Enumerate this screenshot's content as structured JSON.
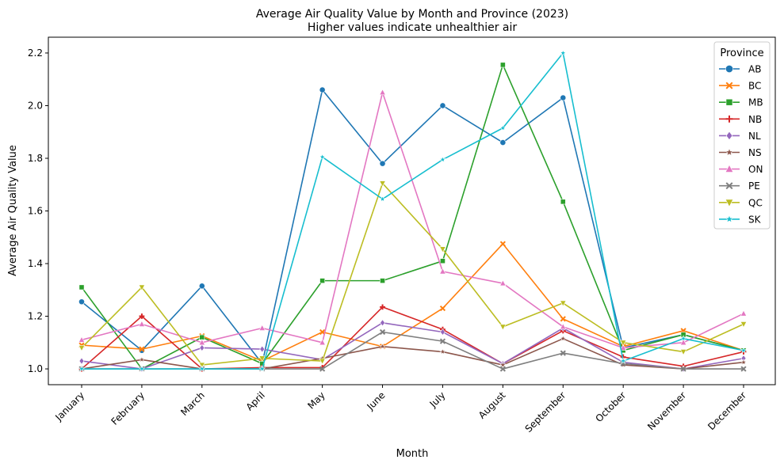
{
  "chart_data": {
    "type": "line",
    "title": "Average Air Quality Value by Month and Province (2023)",
    "subtitle": "Higher values indicate unhealthier air",
    "xlabel": "Month",
    "ylabel": "Average Air Quality Value",
    "categories": [
      "January",
      "February",
      "March",
      "April",
      "May",
      "June",
      "July",
      "August",
      "September",
      "October",
      "November",
      "December"
    ],
    "ylim": [
      0.94,
      2.26
    ],
    "yticks": [
      "1.0",
      "1.2",
      "1.4",
      "1.6",
      "1.8",
      "2.0",
      "2.2"
    ],
    "grid": false,
    "legend": {
      "title": "Province",
      "placement": "top-right"
    },
    "series": [
      {
        "name": "AB",
        "color": "#1f77b4",
        "marker": "circle",
        "values": [
          1.255,
          1.07,
          1.315,
          1.02,
          2.06,
          1.78,
          2.0,
          1.86,
          2.03,
          1.08,
          1.13,
          1.07
        ]
      },
      {
        "name": "BC",
        "color": "#ff7f0e",
        "marker": "x",
        "values": [
          1.09,
          1.075,
          1.125,
          1.03,
          1.14,
          1.085,
          1.23,
          1.475,
          1.19,
          1.085,
          1.145,
          1.07
        ]
      },
      {
        "name": "MB",
        "color": "#2ca02c",
        "marker": "square",
        "values": [
          1.31,
          1.0,
          1.12,
          1.02,
          1.335,
          1.335,
          1.41,
          2.155,
          1.635,
          1.07,
          1.13,
          1.07
        ]
      },
      {
        "name": "NB",
        "color": "#d62728",
        "marker": "plus",
        "values": [
          1.0,
          1.2,
          1.0,
          1.005,
          1.005,
          1.235,
          1.15,
          1.02,
          1.145,
          1.045,
          1.01,
          1.065
        ]
      },
      {
        "name": "NL",
        "color": "#9467bd",
        "marker": "diamond",
        "values": [
          1.03,
          1.0,
          1.08,
          1.075,
          1.035,
          1.175,
          1.14,
          1.02,
          1.155,
          1.025,
          1.0,
          1.04
        ]
      },
      {
        "name": "NS",
        "color": "#8c564b",
        "marker": "star",
        "values": [
          1.0,
          1.035,
          1.0,
          1.0,
          1.04,
          1.085,
          1.065,
          1.015,
          1.115,
          1.015,
          1.0,
          1.025
        ]
      },
      {
        "name": "ON",
        "color": "#e377c2",
        "marker": "triangle-up",
        "values": [
          1.11,
          1.17,
          1.1,
          1.155,
          1.1,
          2.05,
          1.37,
          1.325,
          1.16,
          1.08,
          1.1,
          1.21
        ]
      },
      {
        "name": "PE",
        "color": "#7f7f7f",
        "marker": "x",
        "values": [
          1.0,
          1.0,
          1.0,
          1.0,
          1.0,
          1.14,
          1.105,
          1.0,
          1.06,
          1.02,
          1.0,
          1.0
        ]
      },
      {
        "name": "QC",
        "color": "#bcbd22",
        "marker": "triangle-down",
        "values": [
          1.08,
          1.31,
          1.015,
          1.04,
          1.03,
          1.705,
          1.455,
          1.16,
          1.25,
          1.1,
          1.065,
          1.17
        ]
      },
      {
        "name": "SK",
        "color": "#17becf",
        "marker": "star",
        "values": [
          1.0,
          1.0,
          1.0,
          1.0,
          1.805,
          1.645,
          1.795,
          1.915,
          2.2,
          1.03,
          1.115,
          1.07
        ]
      }
    ]
  }
}
